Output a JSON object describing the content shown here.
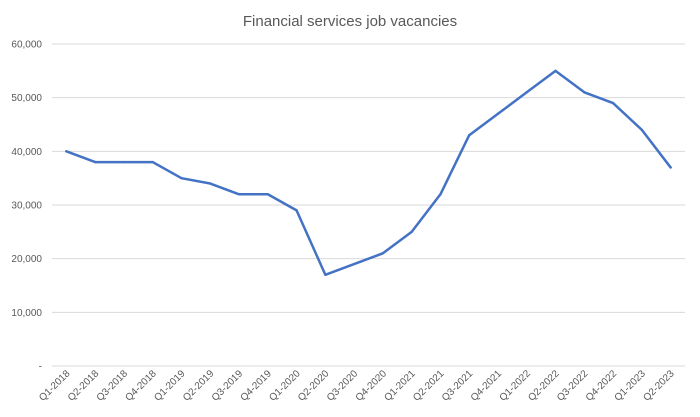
{
  "chart_data": {
    "type": "line",
    "title": "Financial services job vacancies",
    "xlabel": "",
    "ylabel": "",
    "categories": [
      "Q1-2018",
      "Q2-2018",
      "Q3-2018",
      "Q4-2018",
      "Q1-2019",
      "Q2-2019",
      "Q3-2019",
      "Q4-2019",
      "Q1-2020",
      "Q2-2020",
      "Q3-2020",
      "Q4-2020",
      "Q1-2021",
      "Q2-2021",
      "Q3-2021",
      "Q4-2021",
      "Q1-2022",
      "Q2-2022",
      "Q3-2022",
      "Q4-2022",
      "Q1-2023",
      "Q2-2023"
    ],
    "series": [
      {
        "values": [
          40000,
          38000,
          38000,
          38000,
          35000,
          34000,
          32000,
          32000,
          29000,
          17000,
          19000,
          21000,
          25000,
          32000,
          43000,
          47000,
          51000,
          55000,
          51000,
          49000,
          44000,
          37000
        ]
      }
    ],
    "ylim": [
      0,
      60000
    ],
    "yticks": [
      0,
      10000,
      20000,
      30000,
      40000,
      50000,
      60000
    ],
    "ytick_labels": [
      "-",
      "10,000",
      "20,000",
      "30,000",
      "40,000",
      "50,000",
      "60,000"
    ],
    "grid": true,
    "legend": "none",
    "colors": {
      "line": "#4472c4",
      "grid": "#d9d9d9",
      "text": "#595959"
    }
  }
}
